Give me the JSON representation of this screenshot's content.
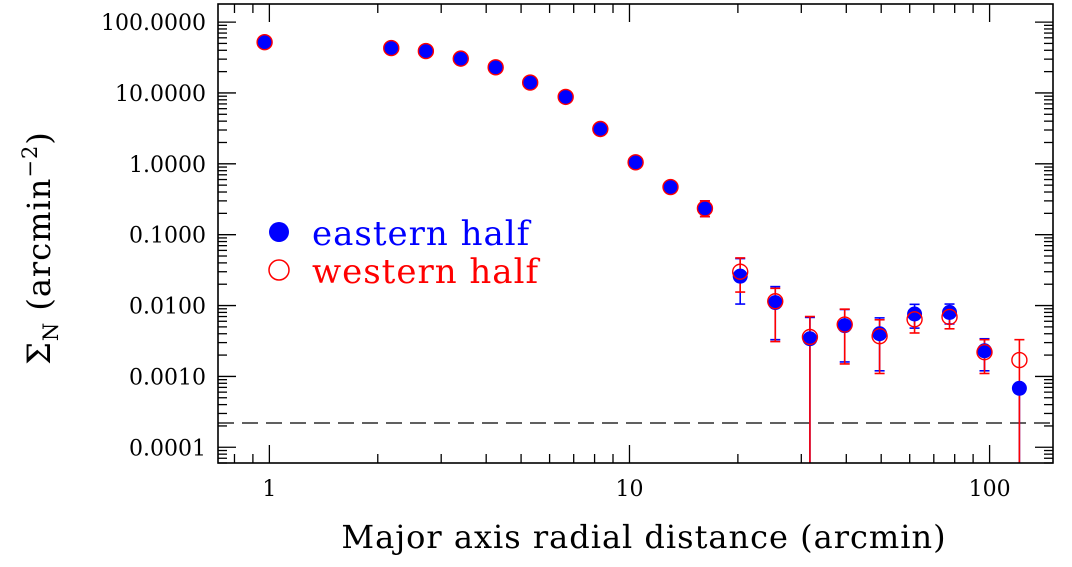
{
  "chart_data": {
    "type": "scatter",
    "xlabel": "Major axis radial distance (arcmin)",
    "ylabel": {
      "symbol": "Σ",
      "subscript": "N",
      "unit_open": " (arcmin",
      "unit_exp": "−2",
      "unit_close": ")"
    },
    "xscale": "log",
    "yscale": "log",
    "xlim": [
      0.72,
      150
    ],
    "ylim": [
      6e-05,
      180
    ],
    "xticks": [
      {
        "value": 1,
        "label": "1"
      },
      {
        "value": 10,
        "label": "10"
      },
      {
        "value": 100,
        "label": "100"
      }
    ],
    "yticks": [
      {
        "value": 100,
        "label": "100.0000"
      },
      {
        "value": 10,
        "label": "10.0000"
      },
      {
        "value": 1,
        "label": "1.0000"
      },
      {
        "value": 0.1,
        "label": "0.1000"
      },
      {
        "value": 0.01,
        "label": "0.0100"
      },
      {
        "value": 0.001,
        "label": "0.0010"
      },
      {
        "value": 0.0001,
        "label": "0.0001"
      }
    ],
    "legend_position": "left-middle",
    "background_level": 0.00022,
    "series": [
      {
        "name": "eastern half",
        "color": "#0000ff",
        "marker": "filled-circle",
        "points": [
          {
            "x": 0.97,
            "y": 52,
            "lo": 48,
            "hi": 56
          },
          {
            "x": 2.18,
            "y": 43,
            "lo": 39,
            "hi": 47
          },
          {
            "x": 2.72,
            "y": 39,
            "lo": 35.5,
            "hi": 43
          },
          {
            "x": 3.4,
            "y": 30.5,
            "lo": 27.5,
            "hi": 34
          },
          {
            "x": 4.25,
            "y": 23,
            "lo": 20.5,
            "hi": 26
          },
          {
            "x": 5.3,
            "y": 14,
            "lo": 12.5,
            "hi": 15.5
          },
          {
            "x": 6.65,
            "y": 8.8,
            "lo": 7.8,
            "hi": 9.9
          },
          {
            "x": 8.3,
            "y": 3.1,
            "lo": 2.75,
            "hi": 3.5
          },
          {
            "x": 10.4,
            "y": 1.05,
            "lo": 0.92,
            "hi": 1.2
          },
          {
            "x": 13.0,
            "y": 0.47,
            "lo": 0.41,
            "hi": 0.54
          },
          {
            "x": 16.2,
            "y": 0.235,
            "lo": 0.18,
            "hi": 0.3
          },
          {
            "x": 20.3,
            "y": 0.026,
            "lo": 0.0105,
            "hi": 0.046
          },
          {
            "x": 25.4,
            "y": 0.011,
            "lo": 0.0033,
            "hi": 0.0185
          },
          {
            "x": 31.7,
            "y": 0.0034,
            "lo": 6e-05,
            "hi": 0.0068
          },
          {
            "x": 39.6,
            "y": 0.0052,
            "lo": 0.0016,
            "hi": 0.0088
          },
          {
            "x": 49.5,
            "y": 0.004,
            "lo": 0.0012,
            "hi": 0.0067
          },
          {
            "x": 61.9,
            "y": 0.0076,
            "lo": 0.0048,
            "hi": 0.0104
          },
          {
            "x": 77.4,
            "y": 0.008,
            "lo": 0.0055,
            "hi": 0.0105
          },
          {
            "x": 96.8,
            "y": 0.0023,
            "lo": 0.0012,
            "hi": 0.0034
          },
          {
            "x": 121,
            "y": 0.00068,
            "lo": 6e-05,
            "hi": 0.00068
          }
        ]
      },
      {
        "name": "western half",
        "color": "#ff0000",
        "marker": "open-circle",
        "points": [
          {
            "x": 0.97,
            "y": 52,
            "lo": 48,
            "hi": 56
          },
          {
            "x": 2.18,
            "y": 43,
            "lo": 39,
            "hi": 47
          },
          {
            "x": 2.72,
            "y": 39,
            "lo": 35.5,
            "hi": 43
          },
          {
            "x": 3.4,
            "y": 30.5,
            "lo": 27.5,
            "hi": 34
          },
          {
            "x": 4.25,
            "y": 23,
            "lo": 20.5,
            "hi": 26
          },
          {
            "x": 5.3,
            "y": 14,
            "lo": 12.5,
            "hi": 15.5
          },
          {
            "x": 6.65,
            "y": 8.8,
            "lo": 7.8,
            "hi": 9.9
          },
          {
            "x": 8.3,
            "y": 3.1,
            "lo": 2.75,
            "hi": 3.5
          },
          {
            "x": 10.4,
            "y": 1.05,
            "lo": 0.92,
            "hi": 1.2
          },
          {
            "x": 13.0,
            "y": 0.47,
            "lo": 0.41,
            "hi": 0.54
          },
          {
            "x": 16.2,
            "y": 0.235,
            "lo": 0.18,
            "hi": 0.3
          },
          {
            "x": 20.3,
            "y": 0.03,
            "lo": 0.0155,
            "hi": 0.047
          },
          {
            "x": 25.4,
            "y": 0.0115,
            "lo": 0.0031,
            "hi": 0.0175
          },
          {
            "x": 31.7,
            "y": 0.0036,
            "lo": 6e-05,
            "hi": 0.007
          },
          {
            "x": 39.6,
            "y": 0.0054,
            "lo": 0.0015,
            "hi": 0.0089
          },
          {
            "x": 49.5,
            "y": 0.0037,
            "lo": 0.0011,
            "hi": 0.0063
          },
          {
            "x": 61.9,
            "y": 0.0064,
            "lo": 0.0041,
            "hi": 0.0087
          },
          {
            "x": 77.4,
            "y": 0.0069,
            "lo": 0.0047,
            "hi": 0.0091
          },
          {
            "x": 96.8,
            "y": 0.0022,
            "lo": 0.0011,
            "hi": 0.0033
          },
          {
            "x": 121,
            "y": 0.0017,
            "lo": 6e-05,
            "hi": 0.0033
          }
        ]
      }
    ]
  }
}
